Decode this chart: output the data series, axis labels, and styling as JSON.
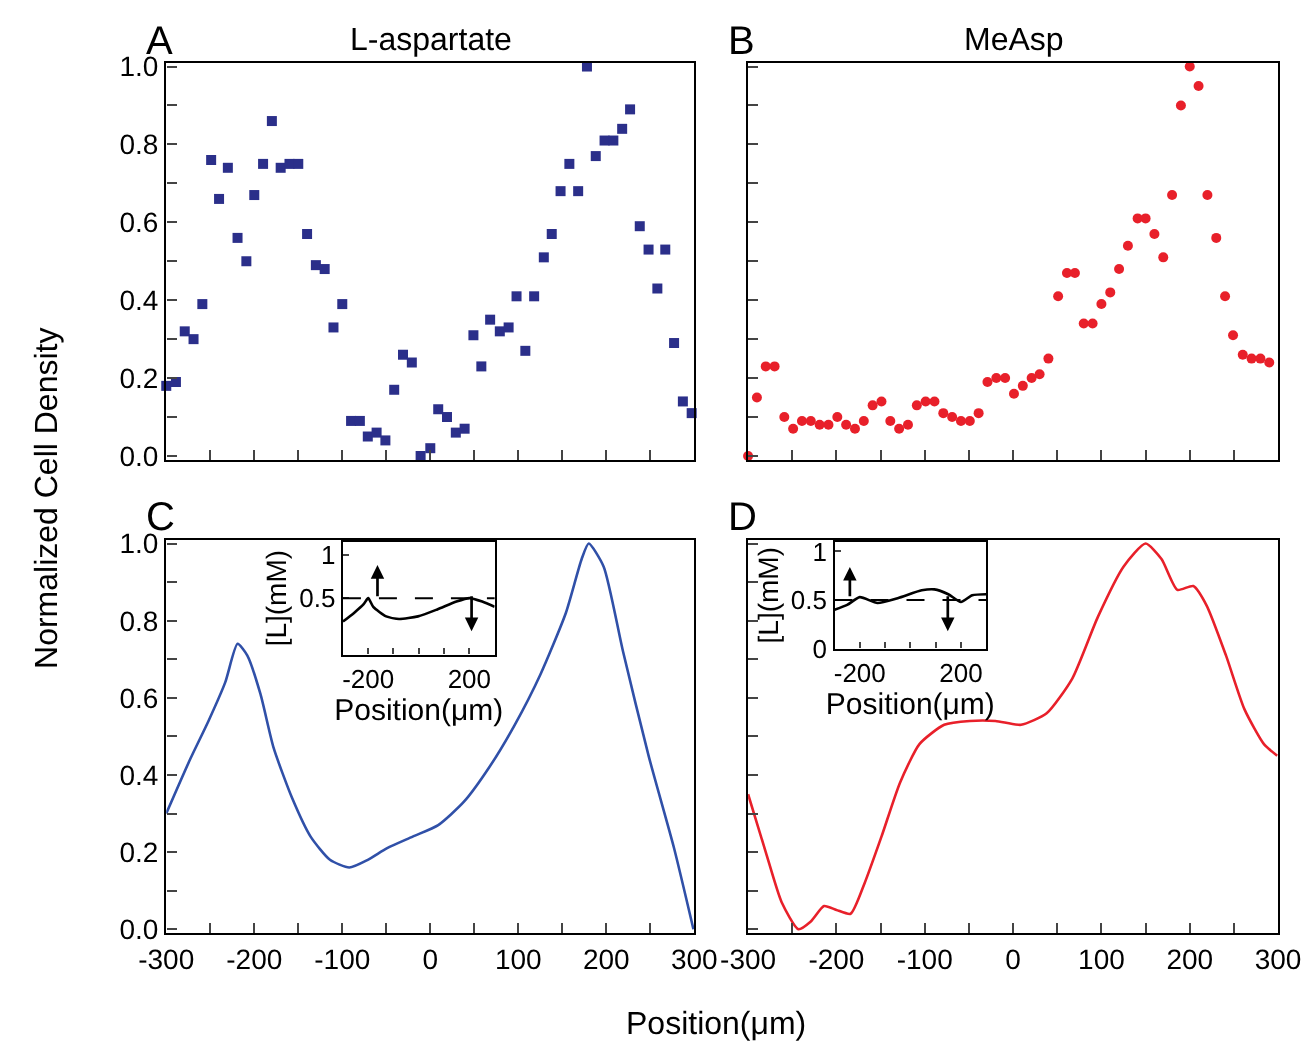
{
  "chart_data": [
    {
      "type": "scatter",
      "title": "L-aspartate",
      "ylabel": "Normalized Cell Density",
      "annotations": [
        "A"
      ],
      "marker": "square",
      "tick_labels": "y",
      "x": [
        -300,
        -289,
        -279,
        -269,
        -259,
        -249,
        -240,
        -230,
        -219,
        -209,
        -200,
        -190,
        -180,
        -170,
        -160,
        -150,
        -140,
        -130,
        -120,
        -110,
        -100,
        -90,
        -80,
        -71,
        -61,
        -51,
        -41,
        -31,
        -21,
        -11,
        0,
        9,
        19,
        29,
        39,
        49,
        58,
        68,
        79,
        89,
        98,
        108,
        118,
        129,
        138,
        148,
        158,
        168,
        178,
        188,
        198,
        208,
        218,
        227,
        238,
        248,
        258,
        267,
        277,
        287,
        297
      ],
      "series": [
        {
          "color": "#2b2f8a",
          "values": [
            0.18,
            0.19,
            0.32,
            0.3,
            0.39,
            0.76,
            0.66,
            0.74,
            0.56,
            0.5,
            0.67,
            0.75,
            0.86,
            0.74,
            0.75,
            0.75,
            0.57,
            0.49,
            0.48,
            0.33,
            0.39,
            0.09,
            0.09,
            0.05,
            0.06,
            0.04,
            0.17,
            0.26,
            0.24,
            0.0,
            0.02,
            0.12,
            0.1,
            0.06,
            0.07,
            0.31,
            0.23,
            0.35,
            0.32,
            0.33,
            0.41,
            0.27,
            0.41,
            0.51,
            0.57,
            0.68,
            0.75,
            0.68,
            1.0,
            0.77,
            0.81,
            0.81,
            0.84,
            0.89,
            0.59,
            0.53,
            0.43,
            0.53,
            0.29,
            0.14,
            0.11
          ]
        }
      ],
      "xlim": [
        -300,
        300
      ],
      "ylim": [
        -0.01,
        1.01
      ],
      "xticks": [
        {
          "value": -300,
          "label": null
        },
        {
          "value": -250,
          "label": null
        },
        {
          "value": -200,
          "label": null
        },
        {
          "value": -150,
          "label": null
        },
        {
          "value": -100,
          "label": null
        },
        {
          "value": -50,
          "label": null
        },
        {
          "value": 0,
          "label": null
        },
        {
          "value": 50,
          "label": null
        },
        {
          "value": 100,
          "label": null
        },
        {
          "value": 150,
          "label": null
        },
        {
          "value": 200,
          "label": null
        },
        {
          "value": 250,
          "label": null
        },
        {
          "value": 300,
          "label": null
        }
      ],
      "yticks": [
        {
          "value": 0,
          "label": "0.0"
        },
        {
          "value": 0.1,
          "label": null
        },
        {
          "value": 0.2,
          "label": "0.2"
        },
        {
          "value": 0.3,
          "label": null
        },
        {
          "value": 0.4,
          "label": "0.4"
        },
        {
          "value": 0.5,
          "label": null
        },
        {
          "value": 0.6,
          "label": "0.6"
        },
        {
          "value": 0.7,
          "label": null
        },
        {
          "value": 0.8,
          "label": "0.8"
        },
        {
          "value": 0.9,
          "label": null
        },
        {
          "value": 1,
          "label": "1.0"
        }
      ]
    },
    {
      "type": "scatter",
      "title": "MeAsp",
      "annotations": [
        "B"
      ],
      "marker": "circle",
      "tick_labels": false,
      "x": [
        -300,
        -290,
        -280,
        -270,
        -259,
        -249,
        -239,
        -229,
        -219,
        -209,
        -199,
        -189,
        -179,
        -169,
        -159,
        -149,
        -139,
        -129,
        -119,
        -109,
        -99,
        -89,
        -79,
        -69,
        -59,
        -49,
        -39,
        -29,
        -19,
        -9,
        1,
        11,
        21,
        30,
        40,
        51,
        61,
        70,
        80,
        90,
        100,
        110,
        120,
        130,
        141,
        150,
        160,
        170,
        180,
        190,
        200,
        210,
        220,
        230,
        240,
        249,
        260,
        270,
        280,
        290
      ],
      "series": [
        {
          "color": "#e8202a",
          "values": [
            0.0,
            0.15,
            0.23,
            0.23,
            0.1,
            0.07,
            0.09,
            0.09,
            0.08,
            0.08,
            0.1,
            0.08,
            0.07,
            0.09,
            0.13,
            0.14,
            0.09,
            0.07,
            0.08,
            0.13,
            0.14,
            0.14,
            0.11,
            0.1,
            0.09,
            0.09,
            0.11,
            0.19,
            0.2,
            0.2,
            0.16,
            0.18,
            0.2,
            0.21,
            0.25,
            0.41,
            0.47,
            0.47,
            0.34,
            0.34,
            0.39,
            0.42,
            0.48,
            0.54,
            0.61,
            0.61,
            0.57,
            0.51,
            0.67,
            0.9,
            1.0,
            0.95,
            0.67,
            0.56,
            0.41,
            0.31,
            0.26,
            0.25,
            0.25,
            0.24
          ]
        }
      ],
      "xlim": [
        -300,
        300
      ],
      "ylim": [
        -0.01,
        1.01
      ],
      "xticks": [
        {
          "value": -300,
          "label": null
        },
        {
          "value": -250,
          "label": null
        },
        {
          "value": -200,
          "label": null
        },
        {
          "value": -150,
          "label": null
        },
        {
          "value": -100,
          "label": null
        },
        {
          "value": -50,
          "label": null
        },
        {
          "value": 0,
          "label": null
        },
        {
          "value": 50,
          "label": null
        },
        {
          "value": 100,
          "label": null
        },
        {
          "value": 150,
          "label": null
        },
        {
          "value": 200,
          "label": null
        },
        {
          "value": 250,
          "label": null
        },
        {
          "value": 300,
          "label": null
        }
      ],
      "yticks": [
        {
          "value": 0,
          "label": null
        },
        {
          "value": 0.1,
          "label": null
        },
        {
          "value": 0.2,
          "label": null
        },
        {
          "value": 0.3,
          "label": null
        },
        {
          "value": 0.4,
          "label": null
        },
        {
          "value": 0.5,
          "label": null
        },
        {
          "value": 0.6,
          "label": null
        },
        {
          "value": 0.7,
          "label": null
        },
        {
          "value": 0.8,
          "label": null
        },
        {
          "value": 0.9,
          "label": null
        },
        {
          "value": 1,
          "label": null
        }
      ]
    },
    {
      "type": "line",
      "xlabel": "Position(μm)",
      "annotations": [
        "C"
      ],
      "x": [
        -300,
        -273,
        -252,
        -233,
        -219,
        -208,
        -193,
        -178,
        -157,
        -136,
        -114,
        -92,
        -71,
        -49,
        -20,
        9,
        38,
        67,
        96,
        125,
        154,
        172,
        180,
        197,
        219,
        248,
        277,
        299
      ],
      "series": [
        {
          "color": "#3050a8",
          "values": [
            0.3,
            0.44,
            0.54,
            0.64,
            0.74,
            0.71,
            0.61,
            0.47,
            0.34,
            0.24,
            0.18,
            0.16,
            0.18,
            0.21,
            0.24,
            0.27,
            0.33,
            0.42,
            0.53,
            0.66,
            0.82,
            0.96,
            1.0,
            0.94,
            0.72,
            0.45,
            0.21,
            0.0
          ]
        }
      ],
      "xlim": [
        -300,
        300
      ],
      "ylim": [
        -0.01,
        1.01
      ],
      "xticks": [
        -300,
        {
          "value": -250,
          "label": null
        },
        -200,
        {
          "value": -150,
          "label": null
        },
        -100,
        {
          "value": -50,
          "label": null
        },
        0,
        {
          "value": 50,
          "label": null
        },
        100,
        {
          "value": 150,
          "label": null
        },
        200,
        {
          "value": 250,
          "label": null
        },
        300
      ],
      "yticks": [
        {
          "value": 0,
          "label": "0.0"
        },
        {
          "value": 0.1,
          "label": null
        },
        {
          "value": 0.2,
          "label": "0.2"
        },
        {
          "value": 0.3,
          "label": null
        },
        {
          "value": 0.4,
          "label": "0.4"
        },
        {
          "value": 0.5,
          "label": null
        },
        {
          "value": 0.6,
          "label": "0.6"
        },
        {
          "value": 0.7,
          "label": null
        },
        {
          "value": 0.8,
          "label": "0.8"
        },
        {
          "value": 0.9,
          "label": null
        },
        {
          "value": 1,
          "label": "1.0"
        }
      ]
    },
    {
      "type": "line",
      "annotations": [
        "D"
      ],
      "tick_labels": "x",
      "x": [
        -300,
        -280,
        -262,
        -243,
        -229,
        -214,
        -200,
        -184,
        -168,
        -149,
        -128,
        -106,
        -78,
        -49,
        -20,
        9,
        38,
        67,
        96,
        125,
        150,
        168,
        186,
        204,
        219,
        241,
        262,
        284,
        299
      ],
      "series": [
        {
          "color": "#e8202a",
          "values": [
            0.35,
            0.2,
            0.07,
            0.0,
            0.02,
            0.06,
            0.05,
            0.04,
            0.12,
            0.24,
            0.38,
            0.48,
            0.53,
            0.54,
            0.54,
            0.53,
            0.56,
            0.65,
            0.81,
            0.94,
            1.0,
            0.96,
            0.88,
            0.89,
            0.84,
            0.71,
            0.57,
            0.48,
            0.45
          ]
        }
      ],
      "xlim": [
        -300,
        300
      ],
      "ylim": [
        -0.01,
        1.01
      ],
      "xticks": [
        -300,
        {
          "value": -250,
          "label": null
        },
        -200,
        {
          "value": -150,
          "label": null
        },
        -100,
        {
          "value": -50,
          "label": null
        },
        0,
        {
          "value": 50,
          "label": null
        },
        100,
        {
          "value": 150,
          "label": null
        },
        200,
        {
          "value": 250,
          "label": null
        },
        300
      ],
      "yticks": [
        {
          "value": 0,
          "label": null
        },
        {
          "value": 0.1,
          "label": null
        },
        {
          "value": 0.2,
          "label": null
        },
        {
          "value": 0.3,
          "label": null
        },
        {
          "value": 0.4,
          "label": null
        },
        {
          "value": 0.5,
          "label": null
        },
        {
          "value": 0.6,
          "label": null
        },
        {
          "value": 0.7,
          "label": null
        },
        {
          "value": 0.8,
          "label": null
        },
        {
          "value": 0.9,
          "label": null
        },
        {
          "value": 1,
          "label": null
        }
      ]
    },
    {
      "type": "line",
      "xlabel": "Position(μm)",
      "ylabel": "[L](mM)",
      "x": [
        -300,
        -256,
        -218,
        -200,
        -180,
        -129,
        -78,
        -3,
        73,
        149,
        200,
        251,
        300
      ],
      "series": [
        {
          "color": "#000000",
          "values": [
            0.23,
            0.33,
            0.43,
            0.5,
            0.4,
            0.29,
            0.26,
            0.29,
            0.37,
            0.46,
            0.5,
            0.46,
            0.4
          ]
        }
      ],
      "ref_lines": [
        {
          "axis": "y",
          "value": 0.5,
          "line_style": "dashed",
          "color": "#000000"
        }
      ],
      "xlim": [
        -300,
        300
      ],
      "ylim": [
        -0.15,
        1.15
      ],
      "xticks": [
        -200,
        {
          "value": -100,
          "label": null
        },
        {
          "value": 0,
          "label": null
        },
        {
          "value": 100,
          "label": null
        },
        200
      ],
      "yticks": [
        0.5,
        1
      ]
    },
    {
      "type": "line",
      "xlabel": "Position(μm)",
      "ylabel": "[L](mM)",
      "x": [
        -300,
        -250,
        -200,
        -130,
        -50,
        45,
        95,
        150,
        200,
        245,
        300
      ],
      "series": [
        {
          "color": "#000000",
          "values": [
            0.4,
            0.45,
            0.53,
            0.47,
            0.52,
            0.6,
            0.61,
            0.56,
            0.48,
            0.55,
            0.56
          ]
        }
      ],
      "ref_lines": [
        {
          "axis": "y",
          "value": 0.5,
          "line_style": "dashed",
          "color": "#000000"
        }
      ],
      "xlim": [
        -300,
        300
      ],
      "ylim": [
        0,
        1.1
      ],
      "xticks": [
        -200,
        {
          "value": -100,
          "label": null
        },
        {
          "value": 0,
          "label": null
        },
        {
          "value": 100,
          "label": null
        },
        200
      ],
      "yticks": [
        0,
        0.5,
        1
      ]
    }
  ]
}
